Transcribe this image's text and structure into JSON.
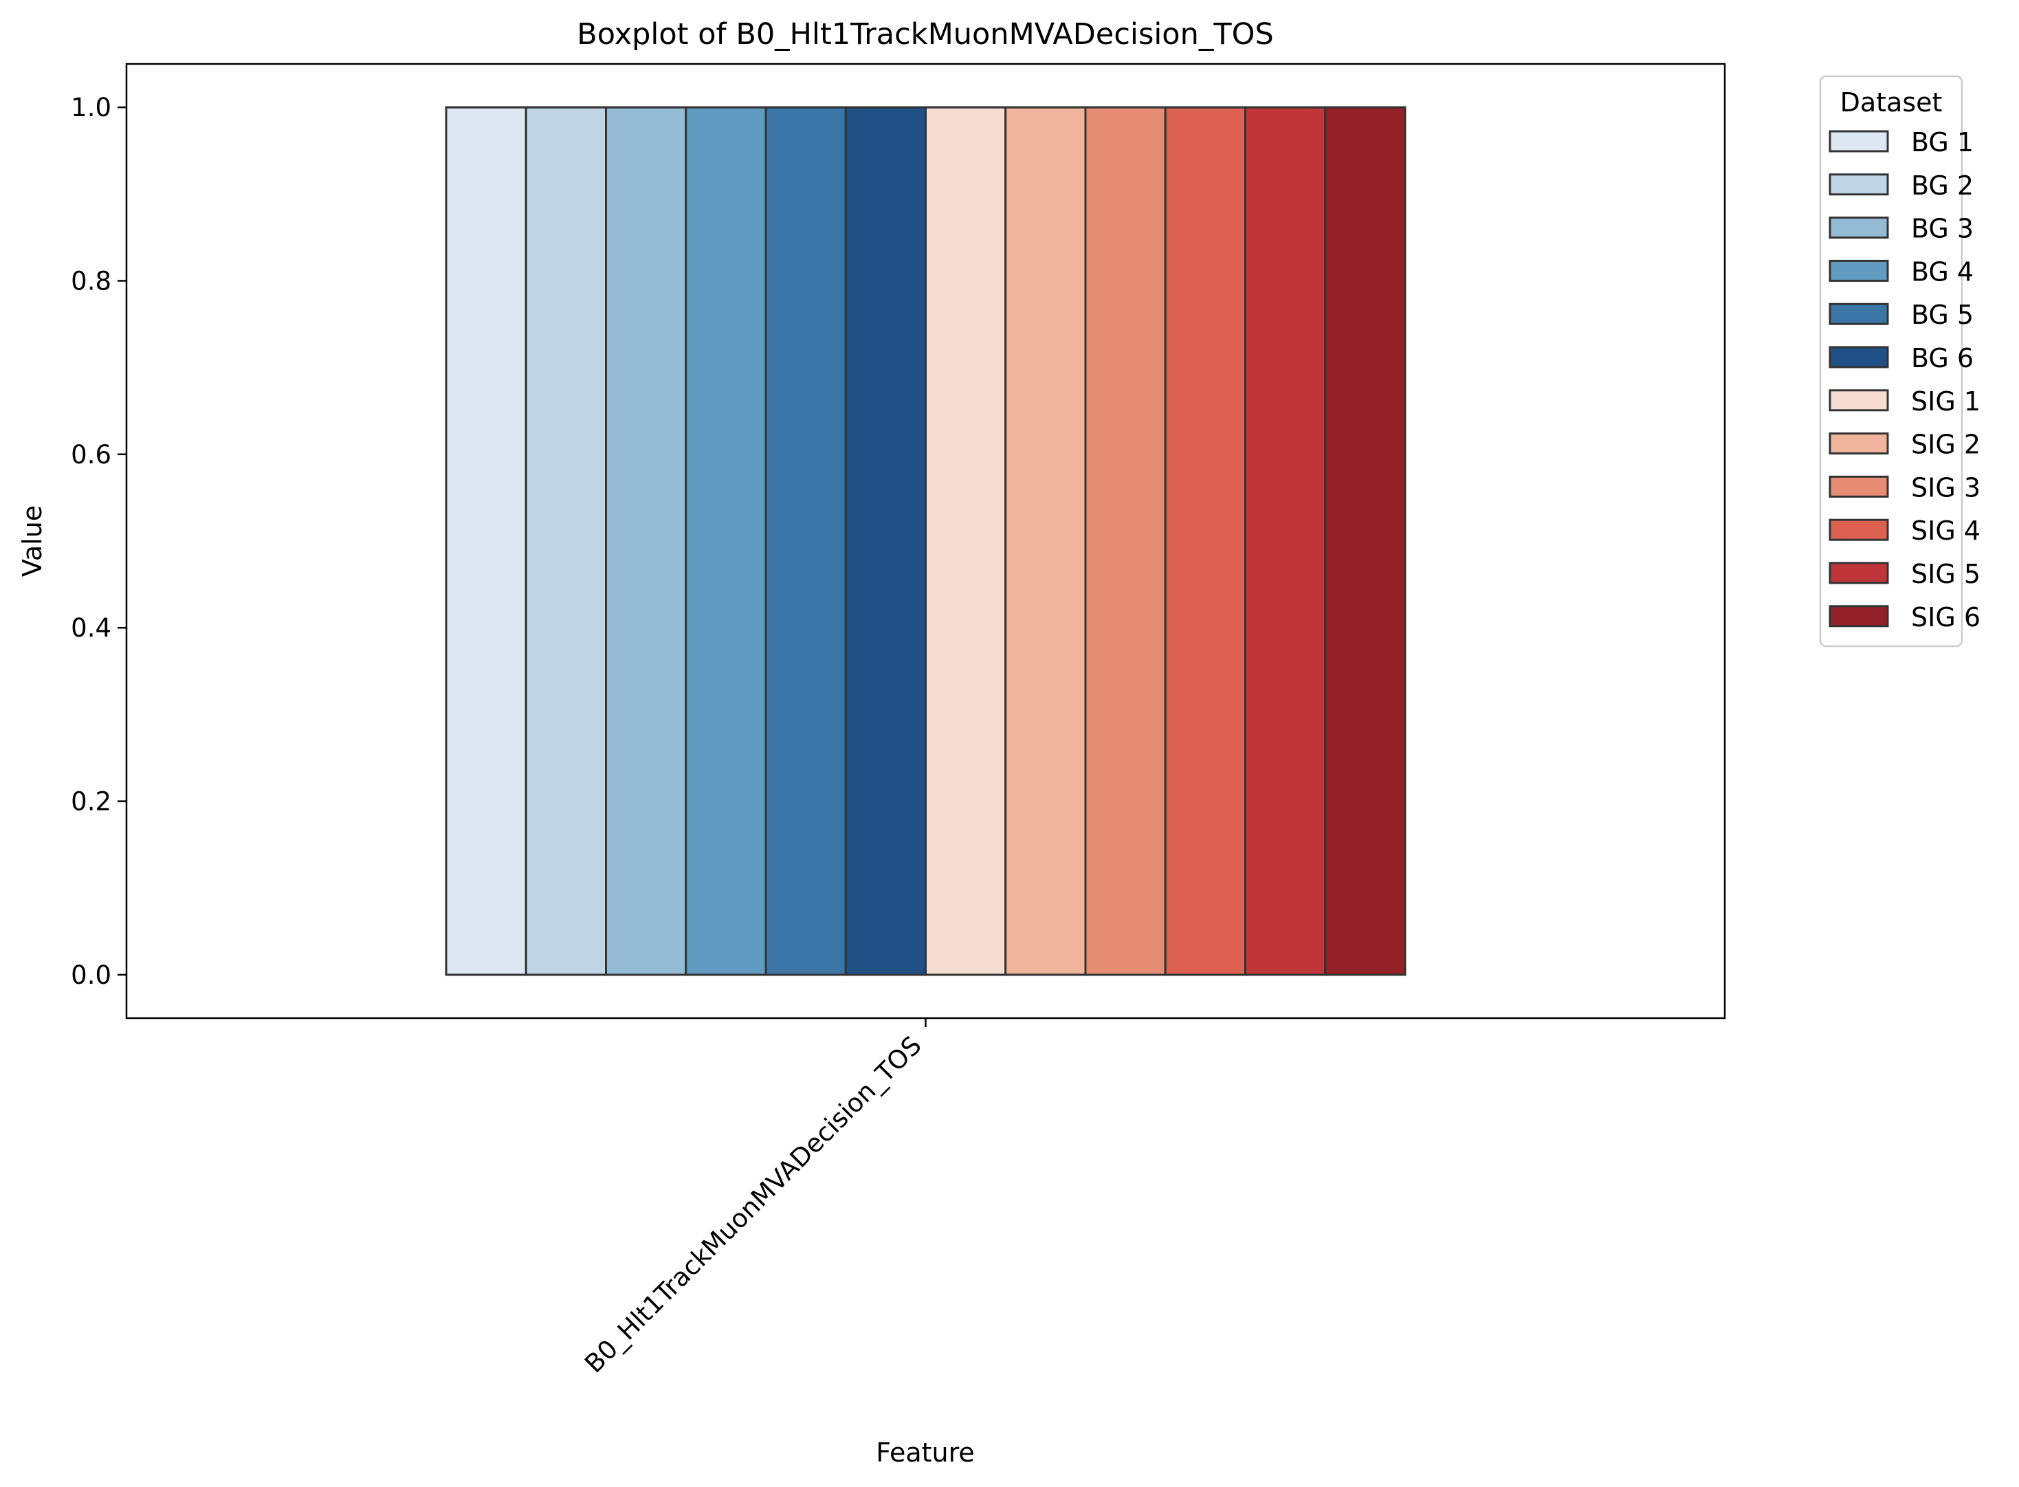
{
  "chart_data": {
    "type": "boxplot",
    "title": "Boxplot of B0_Hlt1TrackMuonMVADecision_TOS",
    "xlabel": "Feature",
    "ylabel": "Value",
    "categories": [
      "B0_Hlt1TrackMuonMVADecision_TOS"
    ],
    "ylim": [
      -0.05,
      1.05
    ],
    "yticks": [
      0.0,
      0.2,
      0.4,
      0.6,
      0.8,
      1.0
    ],
    "ytick_labels": [
      "0.0",
      "0.2",
      "0.4",
      "0.6",
      "0.8",
      "1.0"
    ],
    "grid": false,
    "legend": {
      "title": "Dataset",
      "position": "outside-top-right"
    },
    "series": [
      {
        "name": "BG 1",
        "color": "#dde8f2",
        "q1": 0.0,
        "median": 1.0,
        "q3": 1.0,
        "whisker_low": 0.0,
        "whisker_high": 1.0
      },
      {
        "name": "BG 2",
        "color": "#bfd4e5",
        "q1": 0.0,
        "median": 1.0,
        "q3": 1.0,
        "whisker_low": 0.0,
        "whisker_high": 1.0
      },
      {
        "name": "BG 3",
        "color": "#95bcd4",
        "q1": 0.0,
        "median": 1.0,
        "q3": 1.0,
        "whisker_low": 0.0,
        "whisker_high": 1.0
      },
      {
        "name": "BG 4",
        "color": "#619bbf",
        "q1": 0.0,
        "median": 1.0,
        "q3": 1.0,
        "whisker_low": 0.0,
        "whisker_high": 1.0
      },
      {
        "name": "BG 5",
        "color": "#3b76a6",
        "q1": 0.0,
        "median": 1.0,
        "q3": 1.0,
        "whisker_low": 0.0,
        "whisker_high": 1.0
      },
      {
        "name": "BG 6",
        "color": "#1f5187",
        "q1": 0.0,
        "median": 1.0,
        "q3": 1.0,
        "whisker_low": 0.0,
        "whisker_high": 1.0
      },
      {
        "name": "SIG 1",
        "color": "#f6ddd1",
        "q1": 0.0,
        "median": 1.0,
        "q3": 1.0,
        "whisker_low": 0.0,
        "whisker_high": 1.0
      },
      {
        "name": "SIG 2",
        "color": "#f0b39c",
        "q1": 0.0,
        "median": 1.0,
        "q3": 1.0,
        "whisker_low": 0.0,
        "whisker_high": 1.0
      },
      {
        "name": "SIG 3",
        "color": "#e78c74",
        "q1": 0.0,
        "median": 1.0,
        "q3": 1.0,
        "whisker_low": 0.0,
        "whisker_high": 1.0
      },
      {
        "name": "SIG 4",
        "color": "#dd6151",
        "q1": 0.0,
        "median": 1.0,
        "q3": 1.0,
        "whisker_low": 0.0,
        "whisker_high": 1.0
      },
      {
        "name": "SIG 5",
        "color": "#c0353a",
        "q1": 0.0,
        "median": 1.0,
        "q3": 1.0,
        "whisker_low": 0.0,
        "whisker_high": 1.0
      },
      {
        "name": "SIG 6",
        "color": "#952128",
        "q1": 0.0,
        "median": 1.0,
        "q3": 1.0,
        "whisker_low": 0.0,
        "whisker_high": 1.0
      }
    ]
  }
}
